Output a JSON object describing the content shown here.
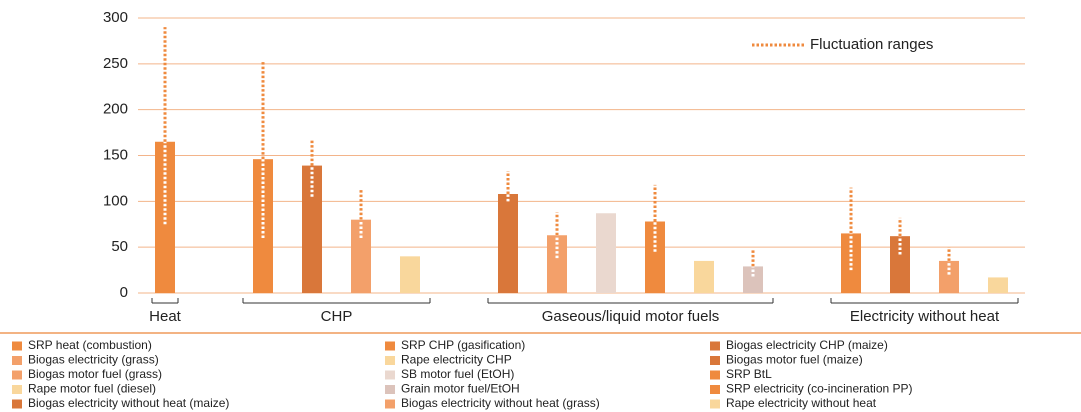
{
  "chart_data": {
    "type": "bar",
    "ylim": [
      0,
      300
    ],
    "yticks": [
      0,
      50,
      100,
      150,
      200,
      250,
      300
    ],
    "grid": true,
    "range_legend": "Fluctuation ranges",
    "range_color": "#ef8a3e",
    "groups": [
      {
        "label": "Heat",
        "bars": [
          {
            "name": "SRP heat (combustion)",
            "color": "#ef8a3e",
            "value": 165,
            "range": [
              75,
              290
            ]
          }
        ]
      },
      {
        "label": "CHP",
        "bars": [
          {
            "name": "SRP CHP (gasification)",
            "color": "#ef8a3e",
            "value": 146,
            "range": [
              60,
              253
            ]
          },
          {
            "name": "Biogas electricity CHP (maize)",
            "color": "#d9773a",
            "value": 139,
            "range": [
              105,
              167
            ]
          },
          {
            "name": "Biogas electricity (grass)",
            "color": "#f3a06a",
            "value": 80,
            "range": [
              60,
              113
            ]
          },
          {
            "name": "Rape electricity CHP",
            "color": "#f9d79c",
            "value": 40,
            "range": null
          }
        ]
      },
      {
        "label": "Gaseous/liquid motor fuels",
        "bars": [
          {
            "name": "Biogas motor fuel (maize)",
            "color": "#d9773a",
            "value": 108,
            "range": [
              100,
              133
            ]
          },
          {
            "name": "Biogas motor fuel (grass)",
            "color": "#f3a06a",
            "value": 63,
            "range": [
              38,
              88
            ]
          },
          {
            "name": "SB motor fuel (EtOH)",
            "color": "#ead8cf",
            "value": 87,
            "range": null
          },
          {
            "name": "SRP BtL",
            "color": "#ef8a3e",
            "value": 78,
            "range": [
              45,
              118
            ]
          },
          {
            "name": "Rape motor fuel (diesel)",
            "color": "#f9d79c",
            "value": 35,
            "range": null
          },
          {
            "name": "Grain motor fuel/EtOH",
            "color": "#dcc3bb",
            "value": 29,
            "range": [
              18,
              48
            ]
          }
        ]
      },
      {
        "label": "Electricity without heat",
        "bars": [
          {
            "name": "SRP electricity (co-incineration PP)",
            "color": "#ef8a3e",
            "value": 65,
            "range": [
              25,
              115
            ]
          },
          {
            "name": "Biogas electricity without heat (maize)",
            "color": "#d9773a",
            "value": 62,
            "range": [
              42,
              82
            ]
          },
          {
            "name": "Biogas electricity without heat (grass)",
            "color": "#f3a06a",
            "value": 35,
            "range": [
              20,
              50
            ]
          },
          {
            "name": "Rape electricity without heat",
            "color": "#f9d79c",
            "value": 17,
            "range": null
          }
        ]
      }
    ]
  }
}
